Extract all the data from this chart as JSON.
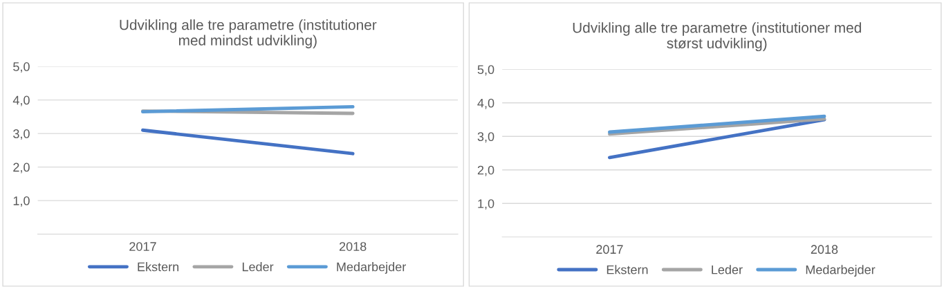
{
  "chart_data": [
    {
      "type": "line",
      "title": "Udvikling alle tre parametre (institutioner\nmed mindst udvikling)",
      "categories": [
        "2017",
        "2018"
      ],
      "ylim": [
        0,
        5
      ],
      "yticks": [
        {
          "value": 1,
          "label": "1,0"
        },
        {
          "value": 2,
          "label": "2,0"
        },
        {
          "value": 3,
          "label": "3,0"
        },
        {
          "value": 4,
          "label": "4,0"
        },
        {
          "value": 5,
          "label": "5,0"
        }
      ],
      "grid": "y",
      "legend": "bottom",
      "marker": "none",
      "line_style": "solid",
      "series": [
        {
          "name": "Ekstern",
          "color": "#4472c4",
          "values": [
            3.1,
            2.4
          ]
        },
        {
          "name": "Leder",
          "color": "#a5a5a5",
          "values": [
            3.67,
            3.6
          ]
        },
        {
          "name": "Medarbejder",
          "color": "#5b9bd5",
          "values": [
            3.65,
            3.8
          ]
        }
      ]
    },
    {
      "type": "line",
      "title": "Udvikling alle tre parametre (institutioner med\nstørst udvikling)",
      "categories": [
        "2017",
        "2018"
      ],
      "ylim": [
        0,
        5
      ],
      "yticks": [
        {
          "value": 1,
          "label": "1,0"
        },
        {
          "value": 2,
          "label": "2,0"
        },
        {
          "value": 3,
          "label": "3,0"
        },
        {
          "value": 4,
          "label": "4,0"
        },
        {
          "value": 5,
          "label": "5,0"
        }
      ],
      "grid": "y",
      "legend": "bottom",
      "marker": "none",
      "line_style": "solid",
      "series": [
        {
          "name": "Ekstern",
          "color": "#4472c4",
          "values": [
            2.37,
            3.5
          ]
        },
        {
          "name": "Leder",
          "color": "#a5a5a5",
          "values": [
            3.07,
            3.52
          ]
        },
        {
          "name": "Medarbejder",
          "color": "#5b9bd5",
          "values": [
            3.13,
            3.6
          ]
        }
      ]
    }
  ]
}
